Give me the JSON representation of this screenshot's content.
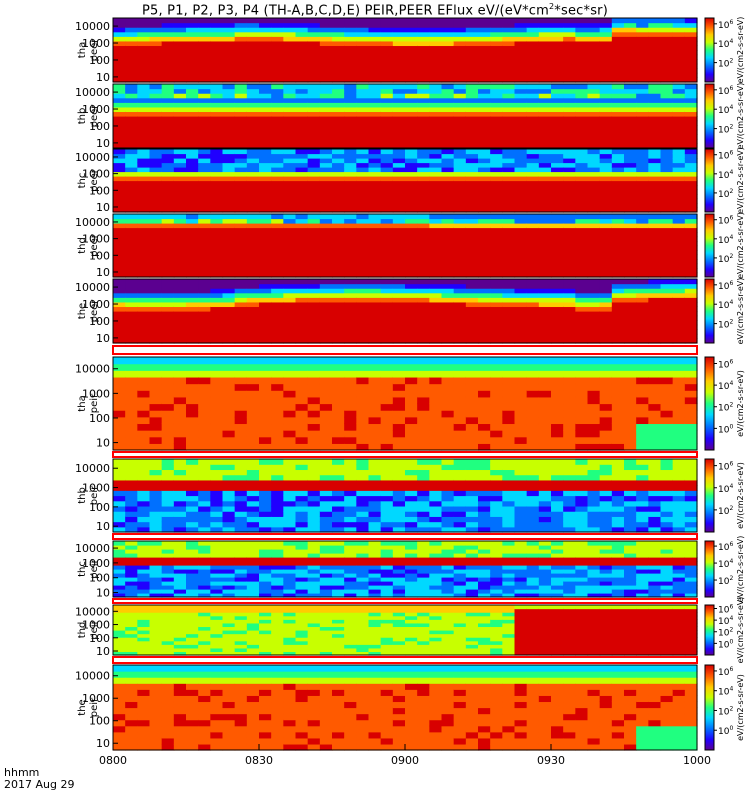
{
  "title_prefix": "P5, P1, P2, P3, P4 (TH-A,B,C,D,E) PEIR,PEER EFlux eV/(eV*cm",
  "title_sup": "2",
  "title_suffix": "*sec*sr)",
  "footer": {
    "hhmm": "hhmm",
    "date": "2017 Aug 29"
  },
  "colors": {
    "scale": [
      "#5b0090",
      "#2000ff",
      "#0070ff",
      "#00d8ff",
      "#20ff80",
      "#c8ff00",
      "#ffcc00",
      "#ff5a00",
      "#d80000"
    ],
    "black": "#000000",
    "separator_red": "#ff0000"
  },
  "chart_data": {
    "type": "heatmap",
    "x_axis": {
      "range": [
        "0800",
        "1000"
      ],
      "ticks": [
        "0800",
        "0830",
        "0900",
        "0930",
        "1000"
      ]
    },
    "y_axis": {
      "scale": "log",
      "range": [
        5,
        30000
      ],
      "ticks": [
        "10",
        "100",
        "1000",
        "10000"
      ]
    },
    "panels": [
      {
        "name_top": "tha",
        "name_bottom": "peer",
        "cb_ticks": [
          "10^2",
          "10^4",
          "10^6"
        ],
        "cb_label": "eV/(cm2-s-sr-eV)"
      },
      {
        "name_top": "thb",
        "name_bottom": "peer",
        "cb_ticks": [
          "10^2",
          "10^4",
          "10^6"
        ],
        "cb_label": "eV/(cm2-s-sr-eV)"
      },
      {
        "name_top": "thc",
        "name_bottom": "peer",
        "cb_ticks": [
          "10^2",
          "10^4",
          "10^6"
        ],
        "cb_label": "eV/(cm2-s-sr-eV)"
      },
      {
        "name_top": "thd",
        "name_bottom": "peer",
        "cb_ticks": [
          "10^2",
          "10^4",
          "10^6"
        ],
        "cb_label": "eV/(cm2-s-sr-eV)"
      },
      {
        "name_top": "the",
        "name_bottom": "peer",
        "cb_ticks": [
          "10^2",
          "10^4",
          "10^6"
        ],
        "cb_label": "eV/(cm2-s-sr-eV)"
      },
      {
        "name_top": "tha",
        "name_bottom": "peir",
        "cb_ticks": [
          "10^0",
          "10^2",
          "10^4",
          "10^6"
        ],
        "cb_label": "eV/(cm2-s-sr-eV)"
      },
      {
        "name_top": "thb",
        "name_bottom": "peir",
        "cb_ticks": [
          "10^2",
          "10^4",
          "10^6"
        ],
        "cb_label": "eV/(cm2-s-sr-eV)"
      },
      {
        "name_top": "thc",
        "name_bottom": "peir",
        "cb_ticks": [
          "10^2",
          "10^4",
          "10^6"
        ],
        "cb_label": "eV/(cm2-s-sr-eV)"
      },
      {
        "name_top": "thd",
        "name_bottom": "peir",
        "cb_ticks": [
          "10^0",
          "10^2",
          "10^4",
          "10^6"
        ],
        "cb_label": "eV/(cm2-s-sr-eV)"
      },
      {
        "name_top": "the",
        "name_bottom": "peir",
        "cb_ticks": [
          "10^0",
          "10^2",
          "10^4",
          "10^6"
        ],
        "cb_label": "eV/(cm2-s-sr-eV)"
      }
    ],
    "colorbar_axis_label": "[eV/(cm2-s-sr-eV)]"
  }
}
